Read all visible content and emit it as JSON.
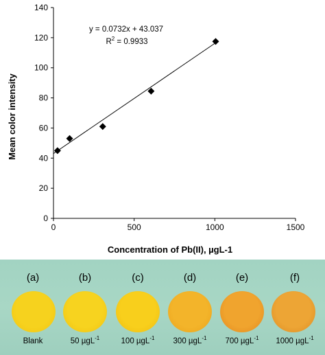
{
  "chart_data": {
    "type": "scatter",
    "title": "",
    "xlabel": "Concentration of Pb(II), µgL-1",
    "ylabel": "Mean color intensity",
    "xlim": [
      0,
      1500
    ],
    "ylim": [
      0,
      140
    ],
    "x_ticks": [
      0,
      500,
      1000,
      1500
    ],
    "y_ticks": [
      0,
      20,
      40,
      60,
      80,
      100,
      120,
      140
    ],
    "grid": false,
    "series": [
      {
        "marker": "diamond",
        "color": "#000000",
        "x": [
          25,
          100,
          305,
          605,
          1005
        ],
        "y": [
          45,
          53,
          61,
          84.5,
          117.5
        ]
      }
    ],
    "trendline": {
      "slope": 0.0732,
      "intercept": 43.037,
      "x_range": [
        0,
        1000
      ],
      "equation": "y = 0.0732x + 43.037",
      "r2_label": "R",
      "r2_value": " = 0.9933"
    }
  },
  "samples": [
    {
      "letter": "(a)",
      "label": "Blank",
      "unit": "",
      "color": "#f6d21e",
      "edge": "#f2c40f"
    },
    {
      "letter": "(b)",
      "label": "50 µgL",
      "unit": "-1",
      "color": "#f7d31f",
      "edge": "#f0c00e"
    },
    {
      "letter": "(c)",
      "label": "100 µgL",
      "unit": "-1",
      "color": "#f8cf1c",
      "edge": "#efbc10"
    },
    {
      "letter": "(d)",
      "label": "300 µgL",
      "unit": "-1",
      "color": "#f3b42a",
      "edge": "#eba21a"
    },
    {
      "letter": "(e)",
      "label": "700 µgL",
      "unit": "-1",
      "color": "#f0a42e",
      "edge": "#e2861c"
    },
    {
      "letter": "(f)",
      "label": "1000 µgL",
      "unit": "-1",
      "color": "#eda535",
      "edge": "#dd8a20"
    }
  ]
}
